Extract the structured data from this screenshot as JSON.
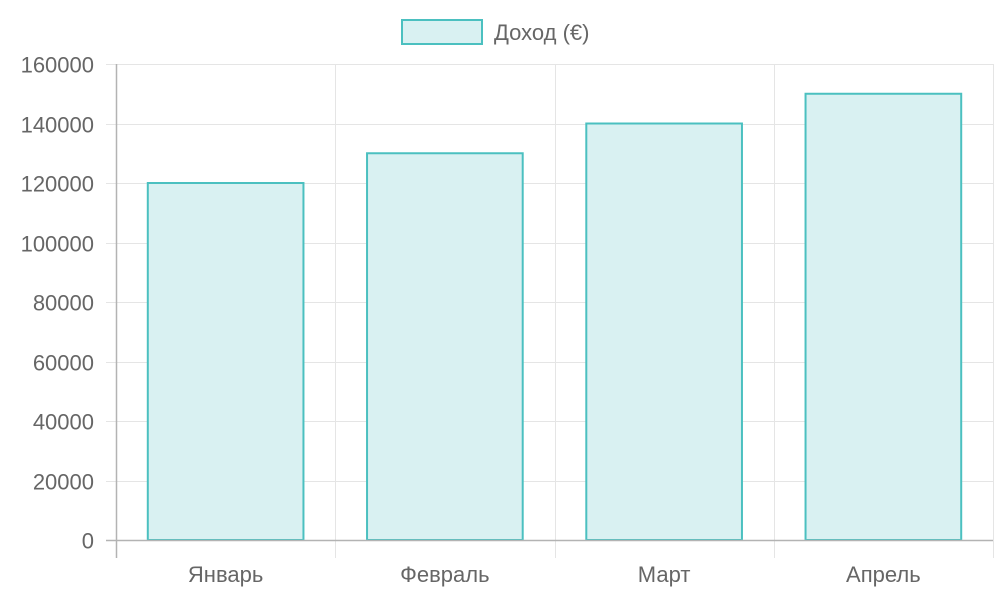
{
  "chart_data": {
    "type": "bar",
    "categories": [
      "Январь",
      "Февраль",
      "Март",
      "Апрель"
    ],
    "series": [
      {
        "name": "Доход (€)",
        "values": [
          120000,
          130000,
          140000,
          150000
        ],
        "fill_color": "#d9f1f2",
        "border_color": "#4bc0c0"
      }
    ],
    "y_ticks": [
      "0",
      "20000",
      "40000",
      "60000",
      "80000",
      "100000",
      "120000",
      "140000",
      "160000"
    ],
    "ylim": [
      0,
      160000
    ],
    "grid": true,
    "legend_position": "top-center",
    "colors": {
      "grid": "#e5e5e5",
      "axis": "#b3b3b3",
      "text": "#666666"
    }
  }
}
